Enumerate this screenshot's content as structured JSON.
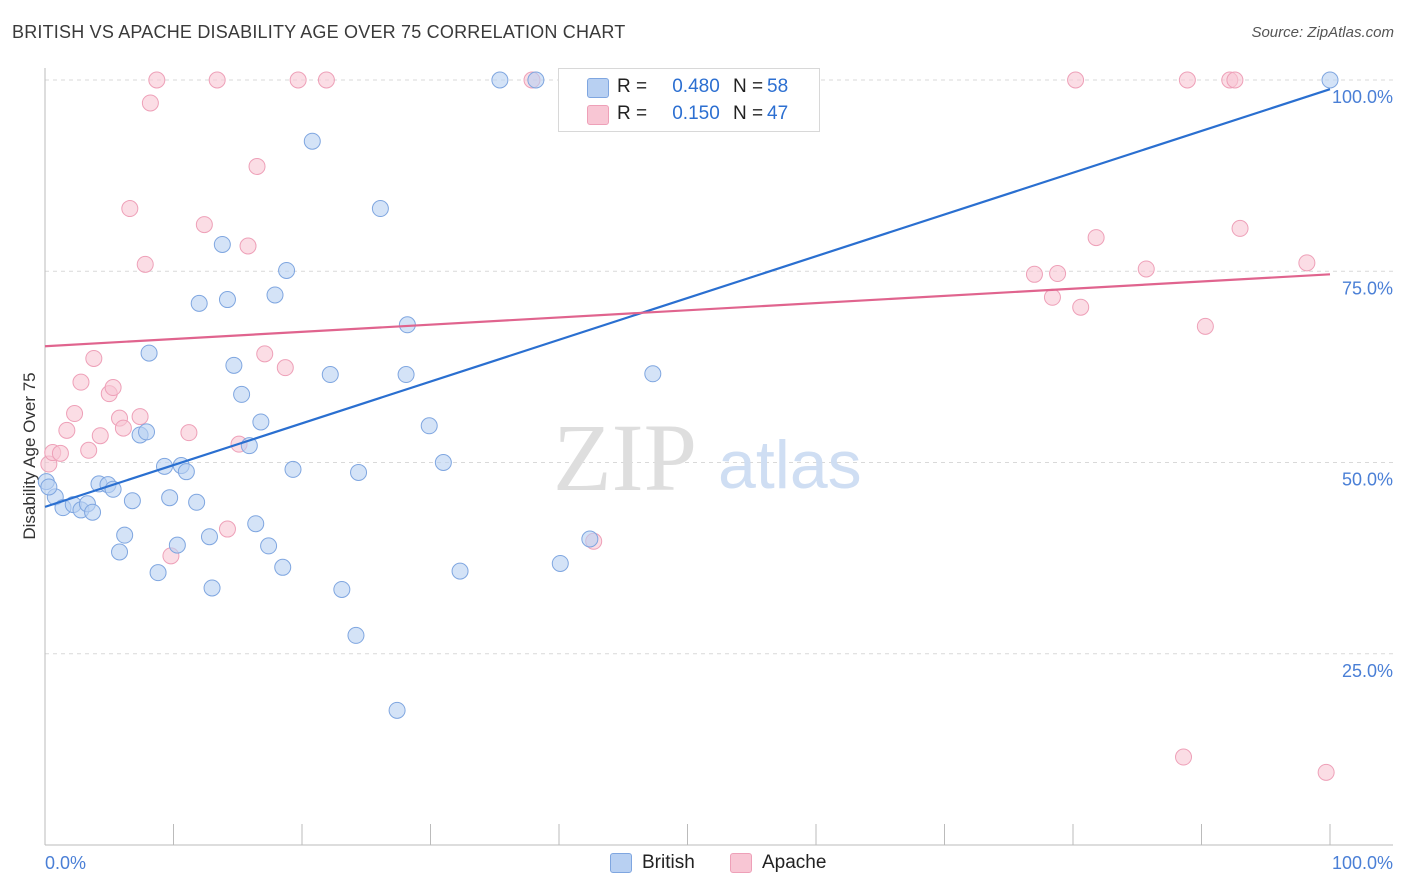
{
  "title": "BRITISH VS APACHE DISABILITY AGE OVER 75 CORRELATION CHART",
  "source": "Source: ZipAtlas.com",
  "watermark": {
    "zip": "ZIP",
    "atlas": "atlas"
  },
  "legend": {
    "british": {
      "r_label": "R =",
      "r_value": "0.480",
      "n_label": "N =",
      "n_value": "58"
    },
    "apache": {
      "r_label": "R =",
      "r_value": "0.150",
      "n_label": "N =",
      "n_value": "47"
    }
  },
  "bottom_legend": {
    "british": "British",
    "apache": "Apache"
  },
  "colors": {
    "british_fill": "#b8d0f2",
    "british_stroke": "#7fa6e0",
    "british_line": "#2a6fd0",
    "apache_fill": "#f8c6d4",
    "apache_stroke": "#eea0b8",
    "apache_line": "#e0648e",
    "tick_label": "#4a7fd6",
    "grid": "#d9d9d9"
  },
  "chart_data": {
    "type": "scatter",
    "title": "BRITISH VS APACHE DISABILITY AGE OVER 75 CORRELATION CHART",
    "xlabel": "",
    "ylabel": "Disability Age Over 75",
    "xlim": [
      0,
      100
    ],
    "ylim": [
      0,
      103
    ],
    "x_tick_labels": [
      "0.0%",
      "100.0%"
    ],
    "y_ticks": [
      25,
      50,
      75,
      100
    ],
    "y_tick_labels": [
      "25.0%",
      "50.0%",
      "75.0%",
      "100.0%"
    ],
    "grid": true,
    "legend_position": "top-center",
    "series": [
      {
        "name": "British",
        "r": 0.48,
        "n": 58,
        "trend": {
          "x": [
            0,
            100
          ],
          "y": [
            44.2,
            98.8
          ]
        },
        "points": [
          [
            0.1,
            47.5
          ],
          [
            0.8,
            45.5
          ],
          [
            1.4,
            44.1
          ],
          [
            2.2,
            44.5
          ],
          [
            2.8,
            43.8
          ],
          [
            3.3,
            44.6
          ],
          [
            3.7,
            43.5
          ],
          [
            4.2,
            47.2
          ],
          [
            4.9,
            47.1
          ],
          [
            5.3,
            46.5
          ],
          [
            5.8,
            38.3
          ],
          [
            6.2,
            40.5
          ],
          [
            6.8,
            45.0
          ],
          [
            7.4,
            53.6
          ],
          [
            7.9,
            54.0
          ],
          [
            8.1,
            64.3
          ],
          [
            8.8,
            35.6
          ],
          [
            9.3,
            49.5
          ],
          [
            9.7,
            45.4
          ],
          [
            10.3,
            39.2
          ],
          [
            10.6,
            49.6
          ],
          [
            11.0,
            48.8
          ],
          [
            11.8,
            44.8
          ],
          [
            12.0,
            70.8
          ],
          [
            12.8,
            40.3
          ],
          [
            13.0,
            33.6
          ],
          [
            13.8,
            78.5
          ],
          [
            14.2,
            71.3
          ],
          [
            14.7,
            62.7
          ],
          [
            15.3,
            58.9
          ],
          [
            15.9,
            52.2
          ],
          [
            16.4,
            42.0
          ],
          [
            16.8,
            55.3
          ],
          [
            17.4,
            39.1
          ],
          [
            17.9,
            71.9
          ],
          [
            18.5,
            36.3
          ],
          [
            18.8,
            75.1
          ],
          [
            19.3,
            49.1
          ],
          [
            20.8,
            92.0
          ],
          [
            22.2,
            61.5
          ],
          [
            23.1,
            33.4
          ],
          [
            24.2,
            27.4
          ],
          [
            24.4,
            48.7
          ],
          [
            26.1,
            83.2
          ],
          [
            27.4,
            17.6
          ],
          [
            28.1,
            61.5
          ],
          [
            28.2,
            68.0
          ],
          [
            29.9,
            54.8
          ],
          [
            31.0,
            50.0
          ],
          [
            32.3,
            35.8
          ],
          [
            35.4,
            100.0
          ],
          [
            38.2,
            100.0
          ],
          [
            40.1,
            36.8
          ],
          [
            42.4,
            40.0
          ],
          [
            47.3,
            61.6
          ],
          [
            52.1,
            100.0
          ],
          [
            100.0,
            100.0
          ],
          [
            0.3,
            46.8
          ]
        ]
      },
      {
        "name": "Apache",
        "r": 0.15,
        "n": 47,
        "trend": {
          "x": [
            0,
            100
          ],
          "y": [
            65.2,
            74.6
          ]
        },
        "points": [
          [
            0.3,
            49.8
          ],
          [
            0.6,
            51.3
          ],
          [
            1.2,
            51.2
          ],
          [
            1.7,
            54.2
          ],
          [
            2.3,
            56.4
          ],
          [
            2.8,
            60.5
          ],
          [
            3.4,
            51.6
          ],
          [
            3.8,
            63.6
          ],
          [
            4.3,
            53.5
          ],
          [
            5.0,
            59.0
          ],
          [
            5.3,
            59.8
          ],
          [
            5.8,
            55.8
          ],
          [
            6.1,
            54.5
          ],
          [
            6.6,
            83.2
          ],
          [
            7.4,
            56.0
          ],
          [
            7.8,
            75.9
          ],
          [
            8.2,
            97.0
          ],
          [
            8.7,
            100.0
          ],
          [
            9.8,
            37.8
          ],
          [
            11.2,
            53.9
          ],
          [
            12.4,
            81.1
          ],
          [
            13.4,
            100.0
          ],
          [
            14.2,
            41.3
          ],
          [
            15.1,
            52.4
          ],
          [
            15.8,
            78.3
          ],
          [
            16.5,
            88.7
          ],
          [
            17.1,
            64.2
          ],
          [
            18.7,
            62.4
          ],
          [
            19.7,
            100.0
          ],
          [
            21.9,
            100.0
          ],
          [
            37.9,
            100.0
          ],
          [
            42.7,
            39.7
          ],
          [
            77.0,
            74.6
          ],
          [
            78.4,
            71.6
          ],
          [
            78.8,
            74.7
          ],
          [
            80.2,
            100.0
          ],
          [
            80.6,
            70.3
          ],
          [
            81.8,
            79.4
          ],
          [
            85.7,
            75.3
          ],
          [
            88.6,
            11.5
          ],
          [
            88.9,
            100.0
          ],
          [
            90.3,
            67.8
          ],
          [
            92.2,
            100.0
          ],
          [
            92.6,
            100.0
          ],
          [
            93.0,
            80.6
          ],
          [
            98.2,
            76.1
          ],
          [
            99.7,
            9.5
          ]
        ]
      }
    ]
  }
}
